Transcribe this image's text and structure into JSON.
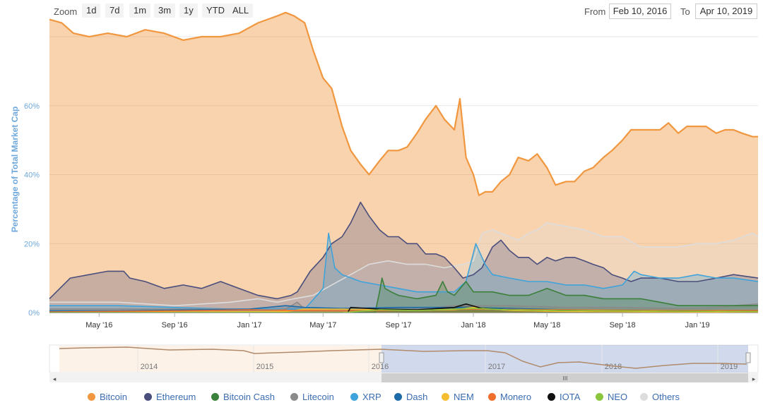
{
  "toolbar": {
    "zoom_label": "Zoom",
    "zoom_buttons": [
      "1d",
      "7d",
      "1m",
      "3m",
      "1y",
      "YTD",
      "ALL"
    ],
    "from_label": "From",
    "from_value": "Feb 10, 2016",
    "to_label": "To",
    "to_value": "Apr 10, 2019"
  },
  "chart_data": {
    "type": "area",
    "title": "",
    "ylabel": "Percentage of Total Market Cap",
    "ylim": [
      0,
      80
    ],
    "y_ticks": [
      0,
      20,
      40,
      60
    ],
    "y_tick_labels": [
      "0%",
      "20%",
      "40%",
      "60%"
    ],
    "x_range": [
      "2016-02-10",
      "2019-04-10"
    ],
    "x_ticks": [
      "2016-05-01",
      "2016-09-01",
      "2017-01-01",
      "2017-05-01",
      "2017-09-01",
      "2018-01-01",
      "2018-05-01",
      "2018-09-01",
      "2019-01-01"
    ],
    "x_tick_labels": [
      "May '16",
      "Sep '16",
      "Jan '17",
      "May '17",
      "Sep '17",
      "Jan '18",
      "May '18",
      "Sep '18",
      "Jan '19"
    ],
    "grid": true,
    "legend_position": "bottom",
    "series": [
      {
        "name": "Bitcoin",
        "color": "#f0973f",
        "x": [
          "2016-02-10",
          "2016-03-01",
          "2016-03-20",
          "2016-04-15",
          "2016-05-15",
          "2016-06-15",
          "2016-07-15",
          "2016-08-15",
          "2016-09-15",
          "2016-10-15",
          "2016-11-15",
          "2016-12-15",
          "2017-01-15",
          "2017-02-15",
          "2017-03-01",
          "2017-03-15",
          "2017-04-01",
          "2017-04-15",
          "2017-05-01",
          "2017-05-15",
          "2017-06-01",
          "2017-06-15",
          "2017-07-01",
          "2017-07-15",
          "2017-08-01",
          "2017-08-15",
          "2017-09-01",
          "2017-09-15",
          "2017-10-01",
          "2017-10-15",
          "2017-11-01",
          "2017-11-15",
          "2017-12-01",
          "2017-12-10",
          "2017-12-20",
          "2018-01-01",
          "2018-01-10",
          "2018-01-20",
          "2018-02-01",
          "2018-02-15",
          "2018-03-01",
          "2018-03-15",
          "2018-04-01",
          "2018-04-15",
          "2018-05-01",
          "2018-05-15",
          "2018-06-01",
          "2018-06-15",
          "2018-07-01",
          "2018-07-15",
          "2018-08-01",
          "2018-08-15",
          "2018-09-01",
          "2018-09-15",
          "2018-10-01",
          "2018-10-15",
          "2018-11-01",
          "2018-11-15",
          "2018-12-01",
          "2018-12-15",
          "2019-01-01",
          "2019-01-15",
          "2019-02-01",
          "2019-02-15",
          "2019-03-01",
          "2019-03-15",
          "2019-04-01",
          "2019-04-10"
        ],
        "values": [
          85,
          84,
          81,
          80,
          81,
          80,
          82,
          81,
          79,
          80,
          80,
          81,
          84,
          86,
          87,
          86,
          84,
          76,
          68,
          65,
          54,
          47,
          43,
          40,
          44,
          47,
          47,
          48,
          52,
          56,
          60,
          56,
          53,
          62,
          45,
          40,
          34,
          35,
          35,
          38,
          40,
          45,
          44,
          46,
          42,
          37,
          38,
          38,
          41,
          42,
          45,
          47,
          50,
          53,
          53,
          53,
          53,
          55,
          52,
          54,
          54,
          54,
          52,
          53,
          53,
          52,
          51,
          51
        ]
      },
      {
        "name": "Ethereum",
        "color": "#4a4e7c",
        "x": [
          "2016-02-10",
          "2016-03-15",
          "2016-04-15",
          "2016-05-15",
          "2016-06-10",
          "2016-06-20",
          "2016-07-15",
          "2016-08-15",
          "2016-09-15",
          "2016-10-15",
          "2016-11-15",
          "2016-12-15",
          "2017-01-15",
          "2017-02-15",
          "2017-03-10",
          "2017-03-20",
          "2017-04-10",
          "2017-05-01",
          "2017-05-15",
          "2017-06-01",
          "2017-06-15",
          "2017-07-01",
          "2017-07-15",
          "2017-08-01",
          "2017-08-15",
          "2017-09-01",
          "2017-09-15",
          "2017-10-01",
          "2017-10-15",
          "2017-11-01",
          "2017-11-15",
          "2017-12-01",
          "2017-12-15",
          "2018-01-01",
          "2018-01-15",
          "2018-02-01",
          "2018-02-15",
          "2018-03-01",
          "2018-03-15",
          "2018-04-01",
          "2018-04-15",
          "2018-05-01",
          "2018-05-15",
          "2018-06-01",
          "2018-06-15",
          "2018-07-01",
          "2018-07-15",
          "2018-08-01",
          "2018-08-15",
          "2018-09-01",
          "2018-09-15",
          "2018-10-01",
          "2018-11-01",
          "2018-12-01",
          "2019-01-01",
          "2019-02-01",
          "2019-03-01",
          "2019-04-10"
        ],
        "values": [
          4,
          10,
          11,
          12,
          12,
          10,
          9,
          7,
          8,
          7,
          9,
          7,
          5,
          4,
          5,
          6,
          12,
          16,
          20,
          22,
          26,
          32,
          28,
          24,
          22,
          22,
          20,
          20,
          17,
          17,
          16,
          13,
          10,
          11,
          13,
          19,
          21,
          18,
          16,
          16,
          14,
          16,
          15,
          16,
          16,
          15,
          14,
          13,
          11,
          10,
          9,
          10,
          10,
          9,
          9,
          10,
          11,
          10
        ]
      },
      {
        "name": "Bitcoin Cash",
        "color": "#3a7f3a",
        "x": [
          "2016-02-10",
          "2017-07-25",
          "2017-08-01",
          "2017-08-05",
          "2017-08-10",
          "2017-08-20",
          "2017-09-01",
          "2017-10-01",
          "2017-11-01",
          "2017-11-12",
          "2017-11-20",
          "2017-12-01",
          "2017-12-20",
          "2018-01-01",
          "2018-02-01",
          "2018-03-01",
          "2018-04-01",
          "2018-05-01",
          "2018-06-01",
          "2018-07-01",
          "2018-08-01",
          "2018-09-01",
          "2018-10-01",
          "2018-11-01",
          "2018-12-01",
          "2019-01-01",
          "2019-02-01",
          "2019-03-01",
          "2019-04-10"
        ],
        "values": [
          0,
          0,
          6,
          10,
          7,
          6,
          5,
          4,
          5,
          9,
          6,
          5,
          9,
          6,
          6,
          5,
          5,
          7,
          5,
          5,
          4,
          4,
          4,
          3,
          2,
          2,
          2,
          2,
          2
        ]
      },
      {
        "name": "Litecoin",
        "color": "#8a8a8a",
        "x": [
          "2016-02-10",
          "2016-06-01",
          "2016-12-01",
          "2017-02-01",
          "2017-03-01",
          "2017-03-20",
          "2017-04-01",
          "2017-05-01",
          "2017-06-01",
          "2017-08-01",
          "2017-10-01",
          "2017-12-01",
          "2018-01-01",
          "2018-03-01",
          "2018-06-01",
          "2018-09-01",
          "2018-12-01",
          "2019-02-01",
          "2019-03-01",
          "2019-04-10"
        ],
        "values": [
          1,
          1,
          1,
          0.5,
          1,
          3,
          1,
          1,
          1,
          1,
          1,
          2,
          2,
          2,
          1.5,
          1.5,
          1.2,
          1.5,
          2,
          2.5
        ]
      },
      {
        "name": "XRP",
        "color": "#3ea3db",
        "x": [
          "2016-02-10",
          "2016-06-01",
          "2016-12-01",
          "2017-03-01",
          "2017-04-01",
          "2017-05-01",
          "2017-05-10",
          "2017-05-20",
          "2017-06-01",
          "2017-07-01",
          "2017-08-01",
          "2017-09-01",
          "2017-10-01",
          "2017-11-01",
          "2017-12-01",
          "2017-12-20",
          "2018-01-05",
          "2018-01-20",
          "2018-02-01",
          "2018-03-01",
          "2018-04-01",
          "2018-05-01",
          "2018-06-01",
          "2018-07-01",
          "2018-08-01",
          "2018-09-01",
          "2018-09-20",
          "2018-10-01",
          "2018-11-01",
          "2018-12-01",
          "2019-01-01",
          "2019-02-01",
          "2019-03-01",
          "2019-04-10"
        ],
        "values": [
          2,
          2,
          1,
          1,
          1,
          7,
          23,
          13,
          11,
          9,
          8,
          7,
          6,
          6,
          6,
          9,
          20,
          14,
          11,
          10,
          9,
          9,
          8,
          8,
          7,
          8,
          12,
          11,
          10,
          10,
          11,
          10,
          10,
          9
        ]
      },
      {
        "name": "Dash",
        "color": "#1c6aa8",
        "x": [
          "2016-02-10",
          "2016-06-01",
          "2017-01-01",
          "2017-03-01",
          "2017-04-01",
          "2017-06-01",
          "2017-09-01",
          "2017-12-01",
          "2018-03-01",
          "2018-06-01",
          "2018-09-01",
          "2018-12-01",
          "2019-04-10"
        ],
        "values": [
          0.5,
          0.5,
          1,
          2,
          1.5,
          1.2,
          1.5,
          1.5,
          1.2,
          0.8,
          0.6,
          0.5,
          0.4
        ]
      },
      {
        "name": "NEM",
        "color": "#f5bd30",
        "x": [
          "2016-02-10",
          "2017-03-01",
          "2017-04-01",
          "2017-06-01",
          "2017-09-01",
          "2017-12-01",
          "2018-01-01",
          "2018-03-01",
          "2018-06-01",
          "2019-04-10"
        ],
        "values": [
          0,
          0.3,
          1,
          1,
          0.7,
          0.8,
          1.5,
          0.6,
          0.3,
          0.1
        ]
      },
      {
        "name": "Monero",
        "color": "#ef6e2e",
        "x": [
          "2016-02-10",
          "2016-09-01",
          "2017-01-01",
          "2017-04-01",
          "2017-07-01",
          "2017-10-01",
          "2018-01-01",
          "2018-06-01",
          "2018-12-01",
          "2019-04-10"
        ],
        "values": [
          0.2,
          0.5,
          0.8,
          0.6,
          0.5,
          0.8,
          1.0,
          0.8,
          0.6,
          0.6
        ]
      },
      {
        "name": "IOTA",
        "color": "#111111",
        "x": [
          "2016-02-10",
          "2017-06-10",
          "2017-06-15",
          "2017-08-01",
          "2017-10-01",
          "2017-12-01",
          "2017-12-20",
          "2018-01-15",
          "2018-03-01",
          "2018-06-01",
          "2018-12-01",
          "2019-04-10"
        ],
        "values": [
          0,
          0,
          1.5,
          1,
          0.8,
          1.5,
          2.5,
          1.2,
          0.8,
          0.6,
          0.4,
          0.3
        ]
      },
      {
        "name": "NEO",
        "color": "#8cc63f",
        "x": [
          "2016-02-10",
          "2017-06-01",
          "2017-08-01",
          "2017-10-01",
          "2018-01-01",
          "2018-03-01",
          "2018-06-01",
          "2018-12-01",
          "2019-04-10"
        ],
        "values": [
          0,
          0,
          0.8,
          0.6,
          1.2,
          0.8,
          0.6,
          0.4,
          0.3
        ]
      },
      {
        "name": "Others",
        "color": "#dddddd",
        "x": [
          "2016-02-10",
          "2016-06-01",
          "2016-09-01",
          "2016-12-01",
          "2017-01-15",
          "2017-02-15",
          "2017-03-15",
          "2017-04-15",
          "2017-05-15",
          "2017-06-15",
          "2017-07-15",
          "2017-08-15",
          "2017-09-15",
          "2017-10-15",
          "2017-11-15",
          "2017-12-15",
          "2018-01-01",
          "2018-01-15",
          "2018-02-01",
          "2018-03-01",
          "2018-03-15",
          "2018-04-01",
          "2018-04-15",
          "2018-05-01",
          "2018-06-01",
          "2018-07-01",
          "2018-08-01",
          "2018-09-01",
          "2018-10-01",
          "2018-11-01",
          "2018-12-01",
          "2019-01-01",
          "2019-02-01",
          "2019-03-01",
          "2019-04-01",
          "2019-04-10"
        ],
        "values": [
          3,
          3,
          2,
          3,
          4,
          3,
          4,
          5,
          8,
          11,
          14,
          15,
          14,
          14,
          13,
          14,
          15,
          23,
          24,
          22,
          21,
          23,
          24,
          26,
          25,
          24,
          22,
          22,
          19,
          19,
          19,
          20,
          20,
          21,
          23,
          22
        ]
      }
    ]
  },
  "navigator": {
    "labels": [
      "2014",
      "2015",
      "2016",
      "2017",
      "2018",
      "2019"
    ],
    "handle_glyph": "III",
    "left_arrow": "◂",
    "right_arrow": "▸"
  }
}
